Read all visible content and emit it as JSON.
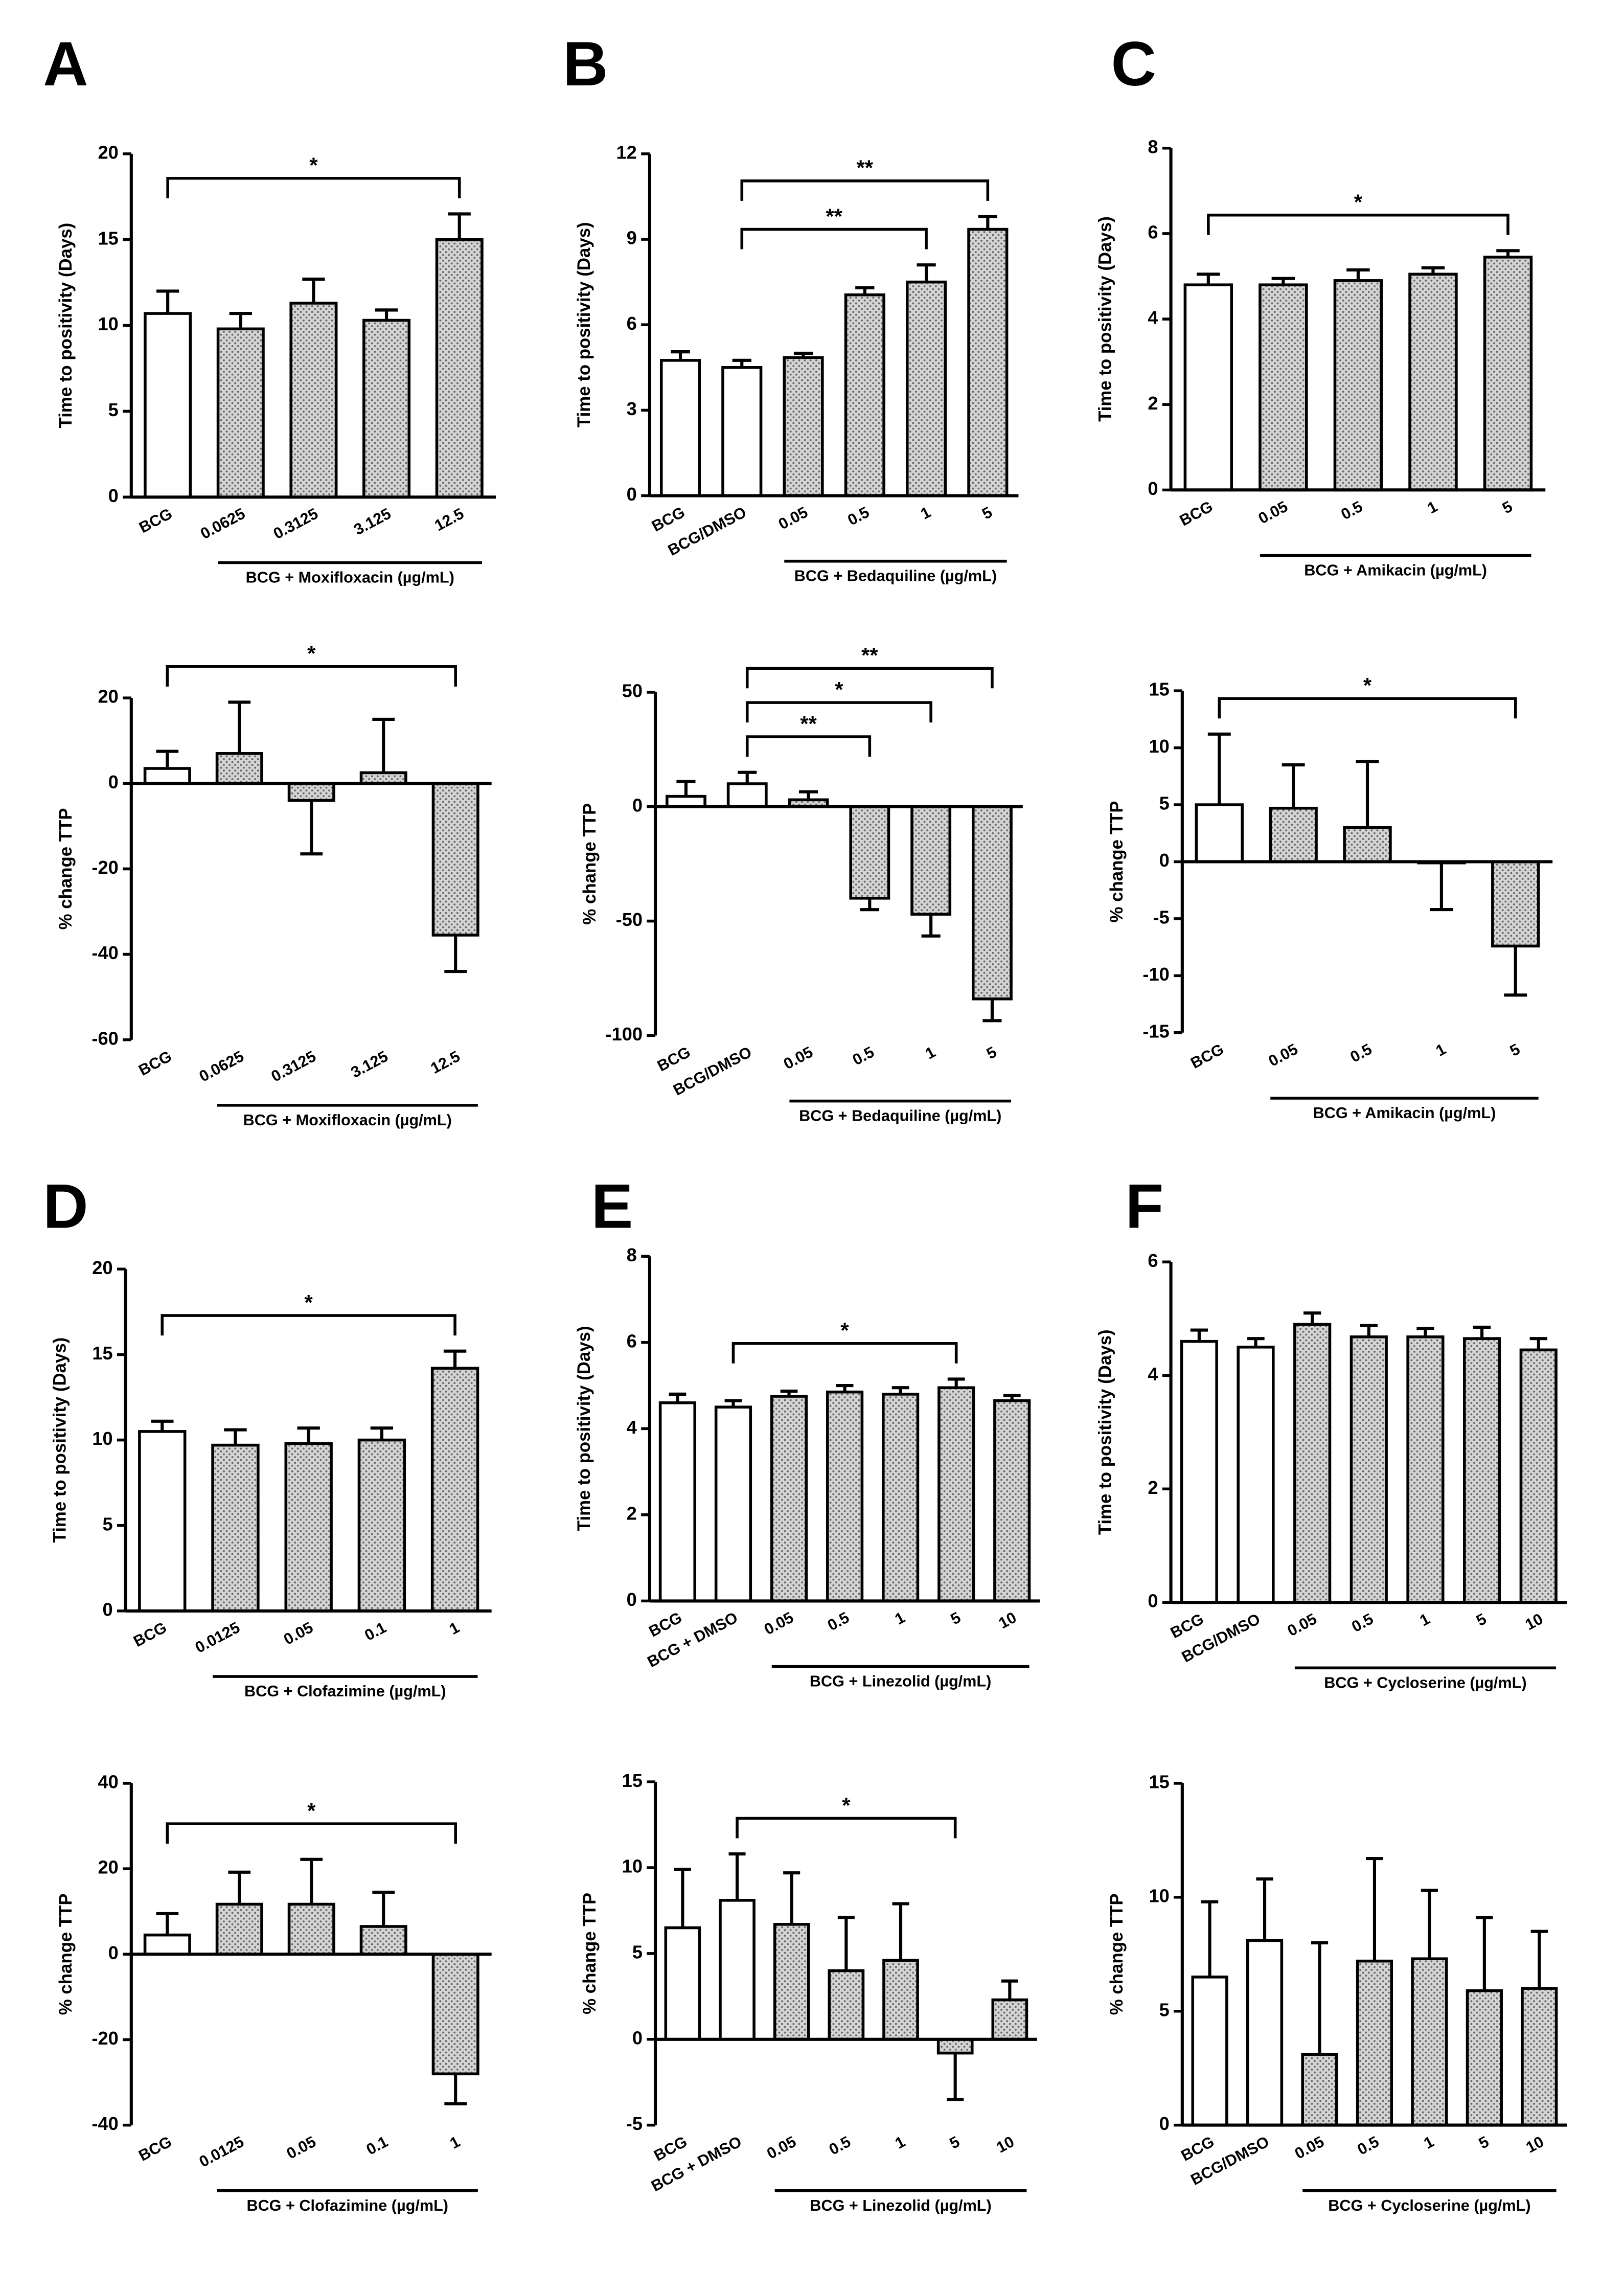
{
  "chart_data": [
    {
      "panel": "A",
      "type": "bar",
      "ylabel": "Time to positivity (Days)",
      "group_label": "BCG + Moxifloxacin (µg/mL)",
      "color": "#d4d4d4",
      "categories": [
        "BCG",
        "0.0625",
        "0.3125",
        "3.125",
        "12.5"
      ],
      "values": [
        10.7,
        9.8,
        11.3,
        10.3,
        15.0
      ],
      "errors": [
        1.3,
        0.9,
        1.4,
        0.6,
        1.5
      ],
      "ylim": [
        0,
        20
      ],
      "yticks": [
        0,
        5,
        10,
        15,
        20
      ],
      "annotations": [
        {
          "text": "*",
          "from": "BCG",
          "to": "12.5"
        }
      ]
    },
    {
      "type": "bar",
      "ylabel": "% change TTP",
      "group_label": "BCG + Moxifloxacin (µg/mL)",
      "color": "#d4d4d4",
      "categories": [
        "BCG",
        "0.0625",
        "0.3125",
        "3.125",
        "12.5"
      ],
      "values": [
        3.5,
        7,
        -4,
        2.5,
        -35.5
      ],
      "errors": [
        4,
        12,
        12.5,
        12.5,
        8.5
      ],
      "ylim": [
        -60,
        20
      ],
      "yticks": [
        -60,
        -40,
        -20,
        0,
        20
      ],
      "annotations": [
        {
          "text": "*",
          "from": "BCG",
          "to": "12.5"
        }
      ]
    },
    {
      "panel": "B",
      "type": "bar",
      "ylabel": "Time to positivity (Days)",
      "group_label": "BCG + Bedaquiline (µg/mL)",
      "color": "#d4d4d4",
      "categories": [
        "BCG",
        "BCG/DMSO",
        "0.05",
        "0.5",
        "1",
        "5"
      ],
      "values": [
        4.75,
        4.5,
        4.85,
        7.05,
        7.5,
        9.35
      ],
      "errors": [
        0.3,
        0.25,
        0.15,
        0.25,
        0.6,
        0.45
      ],
      "ylim": [
        0,
        12
      ],
      "yticks": [
        0,
        3,
        6,
        9,
        12
      ],
      "annotations": [
        {
          "text": "**",
          "from": "BCG/DMSO",
          "to": "1"
        },
        {
          "text": "**",
          "from": "BCG/DMSO",
          "to": "5"
        }
      ]
    },
    {
      "type": "bar",
      "ylabel": "% change TTP",
      "group_label": "BCG + Bedaquiline (µg/mL)",
      "color": "#d4d4d4",
      "categories": [
        "BCG",
        "BCG/DMSO",
        "0.05",
        "0.5",
        "1",
        "5"
      ],
      "values": [
        4.5,
        10,
        3,
        -40,
        -47,
        -84
      ],
      "errors": [
        6.5,
        5,
        3.5,
        5,
        9.5,
        9.5
      ],
      "ylim": [
        -100,
        50
      ],
      "yticks": [
        -100,
        -50,
        0,
        50
      ],
      "annotations": [
        {
          "text": "**",
          "from": "BCG/DMSO",
          "to": "0.5"
        },
        {
          "text": "*",
          "from": "BCG/DMSO",
          "to": "1"
        },
        {
          "text": "**",
          "from": "BCG/DMSO",
          "to": "5"
        }
      ]
    },
    {
      "panel": "C",
      "type": "bar",
      "ylabel": "Time to positivity (Days)",
      "group_label": "BCG + Amikacin (µg/mL)",
      "color": "#d4d4d4",
      "categories": [
        "BCG",
        "0.05",
        "0.5",
        "1",
        "5"
      ],
      "values": [
        4.8,
        4.8,
        4.9,
        5.05,
        5.45
      ],
      "errors": [
        0.25,
        0.15,
        0.25,
        0.15,
        0.15
      ],
      "ylim": [
        0,
        8
      ],
      "yticks": [
        0,
        2,
        4,
        6,
        8
      ],
      "annotations": [
        {
          "text": "*",
          "from": "BCG",
          "to": "5"
        }
      ]
    },
    {
      "type": "bar",
      "ylabel": "% change TTP",
      "group_label": "BCG + Amikacin (µg/mL)",
      "color": "#d4d4d4",
      "categories": [
        "BCG",
        "0.05",
        "0.5",
        "1",
        "5"
      ],
      "values": [
        5,
        4.7,
        3,
        -0.1,
        -7.4
      ],
      "errors": [
        6.2,
        3.8,
        5.8,
        4.1,
        4.3
      ],
      "ylim": [
        -15,
        15
      ],
      "yticks": [
        -15,
        -10,
        -5,
        0,
        5,
        10,
        15
      ],
      "annotations": [
        {
          "text": "*",
          "from": "BCG",
          "to": "5"
        }
      ]
    },
    {
      "panel": "D",
      "type": "bar",
      "ylabel": "Time to positivity (Days)",
      "group_label": "BCG + Clofazimine (µg/mL)",
      "color": "#d4d4d4",
      "categories": [
        "BCG",
        "0.0125",
        "0.05",
        "0.1",
        "1"
      ],
      "values": [
        10.5,
        9.7,
        9.8,
        10.0,
        14.2
      ],
      "errors": [
        0.6,
        0.9,
        0.9,
        0.7,
        1.0
      ],
      "ylim": [
        0,
        20
      ],
      "yticks": [
        0,
        5,
        10,
        15,
        20
      ],
      "annotations": [
        {
          "text": "*",
          "from": "BCG",
          "to": "1"
        }
      ]
    },
    {
      "type": "bar",
      "ylabel": "% change TTP",
      "group_label": "BCG + Clofazimine (µg/mL)",
      "color": "#d4d4d4",
      "categories": [
        "BCG",
        "0.0125",
        "0.05",
        "0.1",
        "1"
      ],
      "values": [
        4.5,
        11.7,
        11.7,
        6.5,
        -28
      ],
      "errors": [
        5,
        7.5,
        10.5,
        8,
        7
      ],
      "ylim": [
        -40,
        40
      ],
      "yticks": [
        -40,
        -20,
        0,
        20,
        40
      ],
      "annotations": [
        {
          "text": "*",
          "from": "BCG",
          "to": "1"
        }
      ]
    },
    {
      "panel": "E",
      "type": "bar",
      "ylabel": "Time to positivity (Days)",
      "group_label": "BCG + Linezolid (µg/mL)",
      "color": "#d4d4d4",
      "categories": [
        "BCG",
        "BCG + DMSO",
        "0.05",
        "0.5",
        "1",
        "5",
        "10"
      ],
      "values": [
        4.6,
        4.5,
        4.75,
        4.85,
        4.8,
        4.95,
        4.65
      ],
      "errors": [
        0.2,
        0.15,
        0.12,
        0.15,
        0.15,
        0.2,
        0.12
      ],
      "ylim": [
        0,
        8
      ],
      "yticks": [
        0,
        2,
        4,
        6,
        8
      ],
      "annotations": [
        {
          "text": "*",
          "from": "BCG + DMSO",
          "to": "5"
        }
      ]
    },
    {
      "type": "bar",
      "ylabel": "% change TTP",
      "group_label": "BCG + Linezolid (µg/mL)",
      "color": "#d4d4d4",
      "categories": [
        "BCG",
        "BCG + DMSO",
        "0.05",
        "0.5",
        "1",
        "5",
        "10"
      ],
      "values": [
        6.5,
        8.1,
        6.7,
        4,
        4.6,
        -0.8,
        2.3
      ],
      "errors": [
        3.4,
        2.7,
        3.0,
        3.1,
        3.3,
        2.7,
        1.1
      ],
      "ylim": [
        -5,
        15
      ],
      "yticks": [
        -5,
        0,
        5,
        10,
        15
      ],
      "annotations": [
        {
          "text": "*",
          "from": "BCG + DMSO",
          "to": "5"
        }
      ]
    },
    {
      "panel": "F",
      "type": "bar",
      "ylabel": "Time to positivity (Days)",
      "group_label": "BCG + Cycloserine (µg/mL)",
      "color": "#d4d4d4",
      "categories": [
        "BCG",
        "BCG/DMSO",
        "0.05",
        "0.5",
        "1",
        "5",
        "10"
      ],
      "values": [
        4.6,
        4.5,
        4.9,
        4.68,
        4.68,
        4.65,
        4.45
      ],
      "errors": [
        0.2,
        0.15,
        0.2,
        0.2,
        0.15,
        0.2,
        0.2
      ],
      "ylim": [
        0,
        6
      ],
      "yticks": [
        0,
        2,
        4,
        6
      ],
      "annotations": []
    },
    {
      "type": "bar",
      "ylabel": "% change TTP",
      "group_label": "BCG + Cycloserine (µg/mL)",
      "color": "#d4d4d4",
      "categories": [
        "BCG",
        "BCG/DMSO",
        "0.05",
        "0.5",
        "1",
        "5",
        "10"
      ],
      "values": [
        6.5,
        8.1,
        3.1,
        7.2,
        7.3,
        5.9,
        6.0
      ],
      "errors": [
        3.3,
        2.7,
        4.9,
        4.5,
        3.0,
        3.2,
        2.5
      ],
      "ylim": [
        0,
        15
      ],
      "yticks": [
        0,
        5,
        10,
        15
      ],
      "annotations": []
    }
  ]
}
